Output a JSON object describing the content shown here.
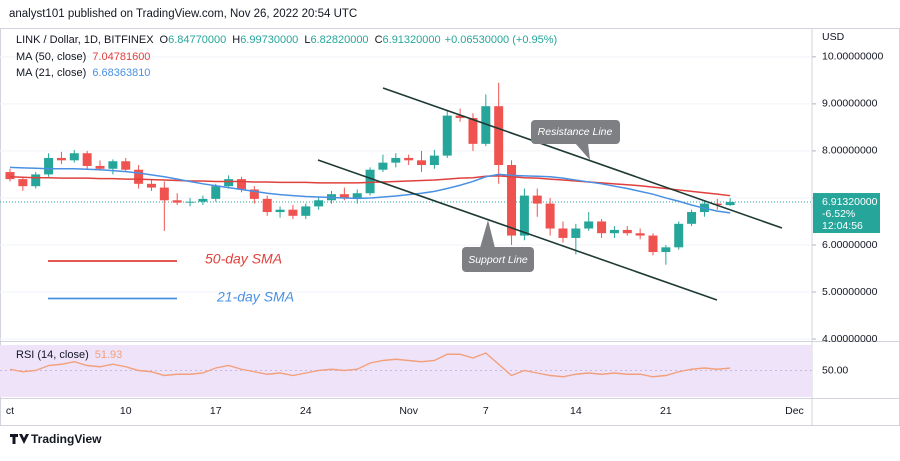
{
  "chart_data": {
    "type": "candlestick",
    "header": "analyst101 published on TradingView.com, Nov 26, 2022 20:54 UTC",
    "currency": "USD",
    "categories": [
      "ct",
      null,
      null,
      null,
      null,
      null,
      null,
      null,
      null,
      "10",
      null,
      null,
      null,
      null,
      null,
      null,
      "17",
      null,
      null,
      null,
      null,
      null,
      null,
      "24",
      null,
      null,
      null,
      null,
      null,
      null,
      null,
      "Nov",
      null,
      null,
      null,
      null,
      null,
      "7",
      null,
      null,
      null,
      null,
      null,
      null,
      "14",
      null,
      null,
      null,
      null,
      null,
      null,
      "21",
      null,
      null,
      null,
      null,
      null,
      null,
      null,
      null,
      null,
      "Dec"
    ],
    "ohlc": {
      "name": "LINK / Dollar, 1D, BITFINEX",
      "up_color": "#26a69a",
      "down_color": "#ef5350",
      "legend": [
        {
          "key": "O",
          "value": "6.84770000"
        },
        {
          "key": "H",
          "value": "6.99730000"
        },
        {
          "key": "L",
          "value": "6.82820000"
        },
        {
          "key": "C",
          "value": "6.91320000"
        }
      ],
      "legend_change": "+0.06530000 (+0.95%)",
      "open": [
        7.55,
        7.4,
        7.25,
        7.5,
        7.85,
        7.8,
        7.95,
        7.68,
        7.62,
        7.78,
        7.6,
        7.3,
        7.22,
        6.95,
        6.9,
        6.92,
        6.98,
        7.25,
        7.4,
        7.18,
        6.98,
        6.7,
        6.75,
        6.62,
        6.82,
        6.95,
        7.08,
        7.0,
        7.1,
        7.6,
        7.75,
        7.85,
        7.8,
        7.7,
        7.9,
        8.75,
        8.7,
        8.15,
        8.95,
        7.7,
        6.2,
        7.05,
        6.88,
        6.35,
        6.15,
        6.35,
        6.5,
        6.25,
        6.32,
        6.25,
        6.2,
        5.85,
        5.95,
        6.45,
        6.7,
        6.88,
        6.8477,
        null,
        null,
        null,
        null,
        null
      ],
      "high": [
        7.62,
        7.45,
        7.55,
        7.95,
        7.98,
        8.02,
        8.0,
        7.8,
        7.82,
        7.85,
        7.7,
        7.4,
        7.35,
        7.1,
        7.0,
        7.05,
        7.3,
        7.48,
        7.45,
        7.25,
        7.05,
        6.82,
        6.85,
        6.88,
        7.02,
        7.15,
        7.22,
        7.18,
        7.65,
        7.92,
        7.95,
        7.92,
        8.0,
        8.02,
        8.85,
        8.9,
        8.8,
        9.2,
        9.45,
        7.8,
        7.2,
        7.2,
        7.0,
        6.5,
        6.45,
        6.7,
        6.55,
        6.4,
        6.4,
        6.35,
        6.25,
        6.0,
        6.5,
        6.75,
        6.95,
        6.98,
        6.9973,
        null,
        null,
        null,
        null,
        null
      ],
      "low": [
        7.35,
        7.15,
        7.2,
        7.45,
        7.72,
        7.75,
        7.6,
        7.58,
        7.5,
        7.55,
        7.2,
        7.15,
        6.3,
        6.85,
        6.82,
        6.85,
        6.92,
        7.2,
        7.12,
        6.88,
        6.62,
        6.58,
        6.55,
        6.55,
        6.75,
        6.88,
        6.95,
        6.88,
        7.05,
        7.55,
        7.65,
        7.7,
        7.55,
        7.62,
        7.85,
        8.62,
        8.0,
        8.1,
        7.3,
        6.0,
        6.1,
        6.6,
        6.2,
        6.05,
        5.8,
        6.3,
        6.15,
        6.15,
        6.2,
        6.12,
        5.78,
        5.58,
        5.9,
        6.4,
        6.6,
        6.75,
        6.8282,
        null,
        null,
        null,
        null,
        null
      ],
      "close": [
        7.4,
        7.25,
        7.5,
        7.85,
        7.8,
        7.95,
        7.68,
        7.62,
        7.78,
        7.6,
        7.3,
        7.22,
        6.95,
        6.9,
        6.92,
        6.98,
        7.25,
        7.4,
        7.18,
        6.98,
        6.7,
        6.75,
        6.62,
        6.82,
        6.95,
        7.08,
        7.0,
        7.1,
        7.6,
        7.75,
        7.85,
        7.8,
        7.7,
        7.9,
        8.75,
        8.7,
        8.15,
        8.95,
        7.7,
        6.2,
        7.05,
        6.88,
        6.35,
        6.15,
        6.35,
        6.5,
        6.25,
        6.32,
        6.25,
        6.2,
        5.85,
        5.95,
        6.45,
        6.7,
        6.88,
        6.85,
        6.9132,
        null,
        null,
        null,
        null,
        null
      ]
    },
    "series": [
      {
        "name": "MA (50, close)",
        "legend_value": "7.04781600",
        "color": "#e0413c",
        "values": [
          7.45,
          7.44,
          7.43,
          7.43,
          7.42,
          7.42,
          7.42,
          7.41,
          7.41,
          7.4,
          7.4,
          7.39,
          7.38,
          7.37,
          7.36,
          7.36,
          7.35,
          7.35,
          7.35,
          7.34,
          7.34,
          7.33,
          7.33,
          7.33,
          7.32,
          7.32,
          7.32,
          7.32,
          7.33,
          7.34,
          7.35,
          7.36,
          7.37,
          7.38,
          7.4,
          7.42,
          7.43,
          7.46,
          7.47,
          7.45,
          7.43,
          7.42,
          7.4,
          7.38,
          7.36,
          7.34,
          7.32,
          7.3,
          7.28,
          7.26,
          7.23,
          7.2,
          7.17,
          7.14,
          7.11,
          7.08,
          7.047816,
          null,
          null,
          null,
          null,
          null
        ]
      },
      {
        "name": "MA (21, close)",
        "legend_value": "6.68363810",
        "color": "#4a90e2",
        "values": [
          7.65,
          7.64,
          7.63,
          7.62,
          7.62,
          7.62,
          7.61,
          7.6,
          7.58,
          7.56,
          7.53,
          7.49,
          7.45,
          7.4,
          7.35,
          7.3,
          7.26,
          7.22,
          7.18,
          7.14,
          7.1,
          7.07,
          7.05,
          7.03,
          7.02,
          7.01,
          7.0,
          6.99,
          7.0,
          7.02,
          7.04,
          7.07,
          7.1,
          7.14,
          7.2,
          7.27,
          7.35,
          7.45,
          7.5,
          7.48,
          7.47,
          7.46,
          7.45,
          7.42,
          7.38,
          7.34,
          7.3,
          7.25,
          7.2,
          7.14,
          7.08,
          7.0,
          6.93,
          6.85,
          6.78,
          6.72,
          6.6836381,
          null,
          null,
          null,
          null,
          null
        ]
      }
    ],
    "ylim": [
      3.98,
      10.57
    ],
    "yticks": [
      {
        "value": 4,
        "label": "4.00000000"
      },
      {
        "value": 5,
        "label": "5.00000000"
      },
      {
        "value": 6,
        "label": "6.00000000"
      },
      {
        "value": 7,
        "label": "7.00000000"
      },
      {
        "value": 8,
        "label": "8.00000000"
      },
      {
        "value": 9,
        "label": "9.00000000"
      },
      {
        "value": 10,
        "label": "10.00000000"
      }
    ],
    "last_price": {
      "value": 6.9132,
      "label": "6.91320000",
      "change": "-6.52%",
      "countdown": "12:04:56",
      "color": "#26a69a"
    },
    "annotations": {
      "resistance": "Resistance Line",
      "support": "Support Line",
      "sma50": "50-day SMA",
      "sma21": "21-day SMA"
    },
    "rsi": {
      "name": "RSI (14, close)",
      "legend_value": "51.93",
      "color": "#f2a07b",
      "band_color": "#efe3fa",
      "values": [
        51,
        49,
        50,
        54,
        55,
        57,
        54,
        53,
        55,
        53,
        50,
        49,
        46,
        47,
        47,
        48,
        52,
        54,
        51,
        49,
        47,
        48,
        46,
        48,
        50,
        51,
        50,
        51,
        56,
        58,
        59,
        58,
        57,
        58,
        63,
        63,
        60,
        64,
        55,
        46,
        50,
        48,
        46,
        45,
        47,
        48,
        47,
        48,
        47,
        47,
        45,
        46,
        49,
        51,
        52,
        51,
        51.93,
        null,
        null,
        null,
        null,
        null
      ],
      "ylim": [
        28,
        72
      ],
      "yticks": [
        {
          "value": 50,
          "label": "50.00"
        }
      ]
    },
    "footer": "TradingView"
  }
}
